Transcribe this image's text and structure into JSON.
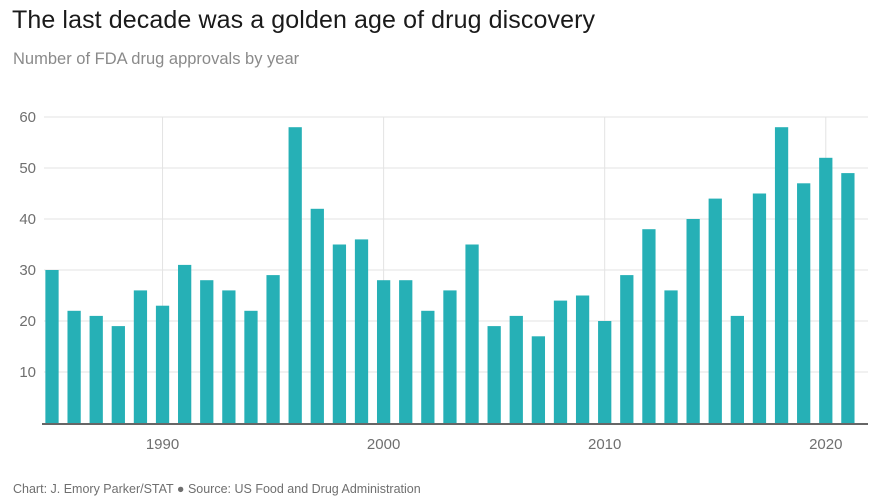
{
  "title": "The last decade was a golden age of drug discovery",
  "subtitle": "Number of FDA drug approvals by year",
  "footer": "Chart: J. Emory Parker/STAT ● Source: US Food and Drug Administration",
  "colors": {
    "bar": "#26b0b6",
    "grid": "#e3e3e3",
    "axis": "#333333"
  },
  "chart_data": {
    "type": "bar",
    "title": "The last decade was a golden age of drug discovery",
    "subtitle": "Number of FDA drug approvals by year",
    "xlabel": "",
    "ylabel": "",
    "ylim": [
      0,
      60
    ],
    "yticks": [
      10,
      20,
      30,
      40,
      50,
      60
    ],
    "xticks": [
      1990,
      2000,
      2010,
      2020
    ],
    "grid": "vertical and horizontal",
    "categories": [
      1985,
      1986,
      1987,
      1988,
      1989,
      1990,
      1991,
      1992,
      1993,
      1994,
      1995,
      1996,
      1997,
      1998,
      1999,
      2000,
      2001,
      2002,
      2003,
      2004,
      2005,
      2006,
      2007,
      2008,
      2009,
      2010,
      2011,
      2012,
      2013,
      2014,
      2015,
      2016,
      2017,
      2018,
      2019,
      2020,
      2021
    ],
    "values": [
      30,
      22,
      21,
      19,
      26,
      23,
      31,
      28,
      26,
      22,
      29,
      58,
      42,
      35,
      36,
      28,
      28,
      22,
      26,
      35,
      19,
      21,
      17,
      24,
      25,
      20,
      29,
      38,
      26,
      40,
      44,
      21,
      45,
      58,
      47,
      52,
      49
    ]
  }
}
